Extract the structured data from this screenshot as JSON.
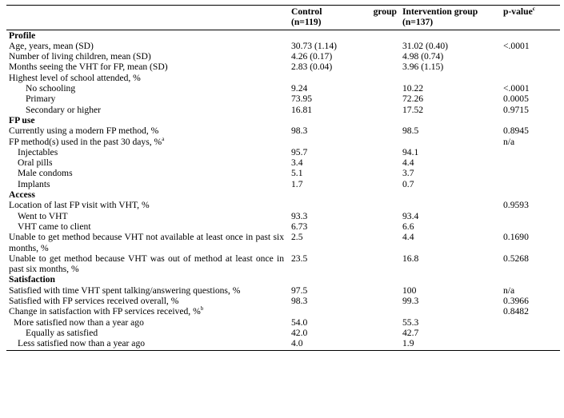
{
  "header": {
    "col1": "",
    "control_a": "Control",
    "control_b": "group",
    "control_n": "(n=119)",
    "intervention": "Intervention group",
    "intervention_n": "(n=137)",
    "pvalue": "p-value",
    "pvalue_sup": "c"
  },
  "rows": [
    {
      "label": "Profile",
      "type": "section"
    },
    {
      "label": "Age, years, mean (SD)",
      "control": "30.73 (1.14)",
      "intervention": "31.02 (0.40)",
      "p": "<.0001"
    },
    {
      "label": "Number of living children, mean (SD)",
      "control": "4.26 (0.17)",
      "intervention": "4.98 (0.74)",
      "p": ""
    },
    {
      "label": "Months seeing the VHT for FP, mean (SD)",
      "control": "2.83 (0.04)",
      "intervention": "3.96 (1.15)",
      "p": ""
    },
    {
      "label": "Highest level of school attended, %",
      "control": "",
      "intervention": "",
      "p": ""
    },
    {
      "label": "No schooling",
      "control": "9.24",
      "intervention": "10.22",
      "p": "<.0001"
    },
    {
      "label": "Primary",
      "control": "73.95",
      "intervention": "72.26",
      "p": "0.0005"
    },
    {
      "label": "Secondary or higher",
      "control": "16.81",
      "intervention": "17.52",
      "p": "0.9715"
    },
    {
      "label": "FP use",
      "type": "section"
    },
    {
      "label": "Currently using a modern FP method, %",
      "control": "98.3",
      "intervention": "98.5",
      "p": "0.8945"
    },
    {
      "label": "FP method(s) used in the past 30 days, %",
      "sup": "a",
      "control": "",
      "intervention": "",
      "p": "n/a"
    },
    {
      "label": "Injectables",
      "control": "95.7",
      "intervention": "94.1",
      "p": ""
    },
    {
      "label": "Oral pills",
      "control": "3.4",
      "intervention": "4.4",
      "p": ""
    },
    {
      "label": "Male condoms",
      "control": "5.1",
      "intervention": "3.7",
      "p": ""
    },
    {
      "label": "Implants",
      "control": "1.7",
      "intervention": "0.7",
      "p": ""
    },
    {
      "label": "Access",
      "type": "section"
    },
    {
      "label": "Location of last FP visit with VHT, %",
      "control": "",
      "intervention": "",
      "p": "0.9593"
    },
    {
      "label": "Went to VHT",
      "control": "93.3",
      "intervention": "93.4",
      "p": ""
    },
    {
      "label": "VHT came to client",
      "control": "6.73",
      "intervention": "6.6",
      "p": ""
    },
    {
      "label": "Unable to get method because VHT not available at least once in past six months, %",
      "control": "2.5",
      "intervention": "4.4",
      "p": "0.1690"
    },
    {
      "label": "Unable to get method because VHT was out of method at least once in past six months, %",
      "control": "23.5",
      "intervention": "16.8",
      "p": "0.5268"
    },
    {
      "label": "Satisfaction",
      "type": "section"
    },
    {
      "label": "Satisfied with time VHT spent talking/answering questions, %",
      "control": "97.5",
      "intervention": "100",
      "p": "n/a"
    },
    {
      "label": "Satisfied with FP services received overall, %",
      "control": "98.3",
      "intervention": "99.3",
      "p": "0.3966"
    },
    {
      "label": "Change in satisfaction with FP services received, %",
      "sup": "b",
      "control": "",
      "intervention": "",
      "p": "0.8482"
    },
    {
      "label": "More satisfied now than a year ago",
      "control": "54.0",
      "intervention": "55.3",
      "p": ""
    },
    {
      "label": "Equally as satisfied",
      "control": "42.0",
      "intervention": "42.7",
      "p": ""
    },
    {
      "label": "Less satisfied now than a year ago",
      "control": "4.0",
      "intervention": "1.9",
      "p": ""
    }
  ]
}
